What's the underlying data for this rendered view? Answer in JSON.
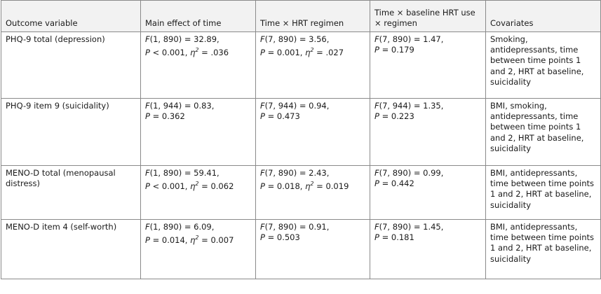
{
  "headers": [
    "Outcome variable",
    "Main effect of time",
    "Time × HRT regimen",
    "Time × baseline HRT use × regimen",
    "Covariates"
  ],
  "rows": [
    {
      "outcome": "PHQ-9 total (depression)",
      "main": {
        "df": "(1, 890) = 32.89,",
        "p": " < 0.001, ",
        "eta": " = .036"
      },
      "regimen": {
        "df": "(7, 890) = 3.56,",
        "p": " = 0.001, ",
        "eta": " = .027"
      },
      "baseline": {
        "df": "(7, 890) = 1.47,",
        "p": " = 0.179",
        "eta": ""
      },
      "covariates": "Smoking, antidepressants, time between time points 1 and 2, HRT at baseline, suicidality"
    },
    {
      "outcome": "PHQ-9 item 9 (suicidality)",
      "main": {
        "df": "(1, 944) = 0.83,",
        "p": " = 0.362",
        "eta": ""
      },
      "regimen": {
        "df": "(7, 944) = 0.94,",
        "p": " = 0.473",
        "eta": ""
      },
      "baseline": {
        "df": "(7, 944) = 1.35,",
        "p": " = 0.223",
        "eta": ""
      },
      "covariates": "BMI, smoking, antidepressants, time between time points 1 and 2, HRT at baseline, suicidality"
    },
    {
      "outcome": "MENO-D total (menopausal distress)",
      "main": {
        "df": "(1, 890) = 59.41,",
        "p": " < 0.001, ",
        "eta": " = 0.062"
      },
      "regimen": {
        "df": "(7, 890) = 2.43,",
        "p": " = 0.018, ",
        "eta": " = 0.019"
      },
      "baseline": {
        "df": "(7, 890) = 0.99,",
        "p": " = 0.442",
        "eta": ""
      },
      "covariates": "BMI, antidepressants, time between time points 1 and 2, HRT at baseline, suicidality"
    },
    {
      "outcome": "MENO-D item 4 (self-worth)",
      "main": {
        "df": "(1, 890) = 6.09,",
        "p": " = 0.014, ",
        "eta": " = 0.007"
      },
      "regimen": {
        "df": "(7, 890) = 0.91,",
        "p": " = 0.503",
        "eta": ""
      },
      "baseline": {
        "df": "(7, 890) = 1.45,",
        "p": " = 0.181",
        "eta": ""
      },
      "covariates": "BMI, antidepressants, time between time points 1 and 2, HRT at baseline, suicidality"
    }
  ]
}
